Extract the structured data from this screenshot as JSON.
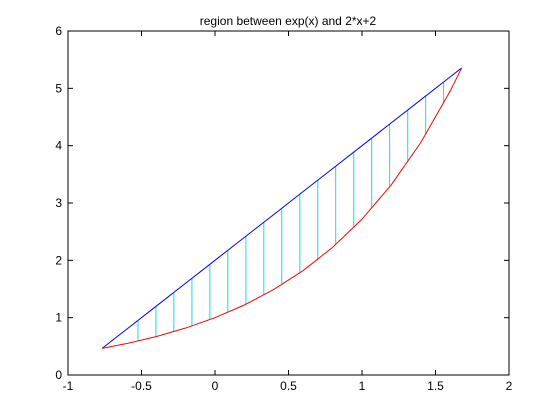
{
  "chart_data": {
    "type": "line",
    "title": "region between exp(x) and 2*x+2",
    "xlabel": "",
    "ylabel": "",
    "xlim": [
      -1,
      2
    ],
    "ylim": [
      0,
      6
    ],
    "x_ticks": [
      "-1",
      "-0.5",
      "0",
      "0.5",
      "1",
      "1.5",
      "2"
    ],
    "y_ticks": [
      "0",
      "1",
      "2",
      "3",
      "4",
      "5",
      "6"
    ],
    "grid": false,
    "legend": "none",
    "region_x_range": [
      -0.768,
      1.678
    ],
    "series": [
      {
        "color": "#0000ff",
        "x": [
          -0.768,
          -0.6,
          -0.4,
          -0.2,
          0,
          0.2,
          0.4,
          0.6,
          0.8,
          1.0,
          1.2,
          1.4,
          1.6,
          1.678
        ],
        "y": [
          0.464,
          0.8,
          1.2,
          1.6,
          2.0,
          2.4,
          2.8,
          3.2,
          3.6,
          4.0,
          4.4,
          4.8,
          5.2,
          5.356
        ]
      },
      {
        "color": "#ff0000",
        "x": [
          -0.768,
          -0.6,
          -0.4,
          -0.2,
          0,
          0.2,
          0.4,
          0.6,
          0.8,
          1.0,
          1.2,
          1.4,
          1.6,
          1.678
        ],
        "y": [
          0.464,
          0.549,
          0.67,
          0.819,
          1.0,
          1.221,
          1.492,
          1.822,
          2.226,
          2.718,
          3.32,
          4.055,
          4.953,
          5.356
        ]
      }
    ],
    "fill_lines": {
      "color": "#00e5ee",
      "x": [
        -0.524,
        -0.402,
        -0.28,
        -0.157,
        -0.035,
        0.087,
        0.21,
        0.332,
        0.454,
        0.577,
        0.699,
        0.821,
        0.944,
        1.066,
        1.188,
        1.311,
        1.433,
        1.555
      ]
    }
  }
}
